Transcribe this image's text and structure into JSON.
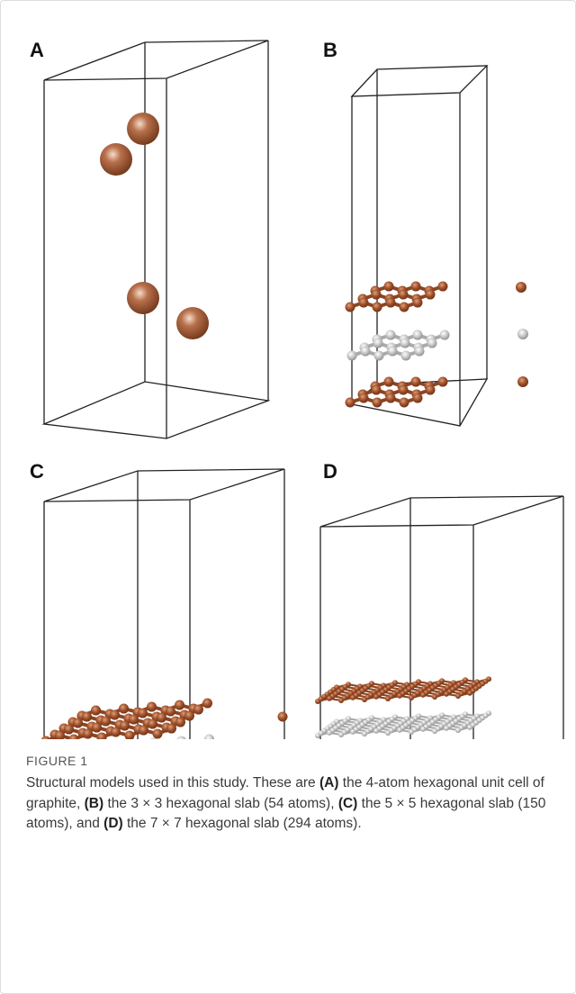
{
  "panels": [
    {
      "label": "A"
    },
    {
      "label": "B"
    },
    {
      "label": "C"
    },
    {
      "label": "D"
    }
  ],
  "caption": {
    "label": "FIGURE 1",
    "segments": [
      "Structural models used in this study. These are ",
      "(A)",
      " the 4-atom hexagonal unit cell of graphite, ",
      "(B)",
      " the 3 × 3 hexagonal slab (54 atoms), ",
      "(C)",
      " the 5 × 5 hexagonal slab (150 atoms), and ",
      "(D)",
      " the 7 × 7 hexagonal slab (294 atoms)."
    ]
  }
}
